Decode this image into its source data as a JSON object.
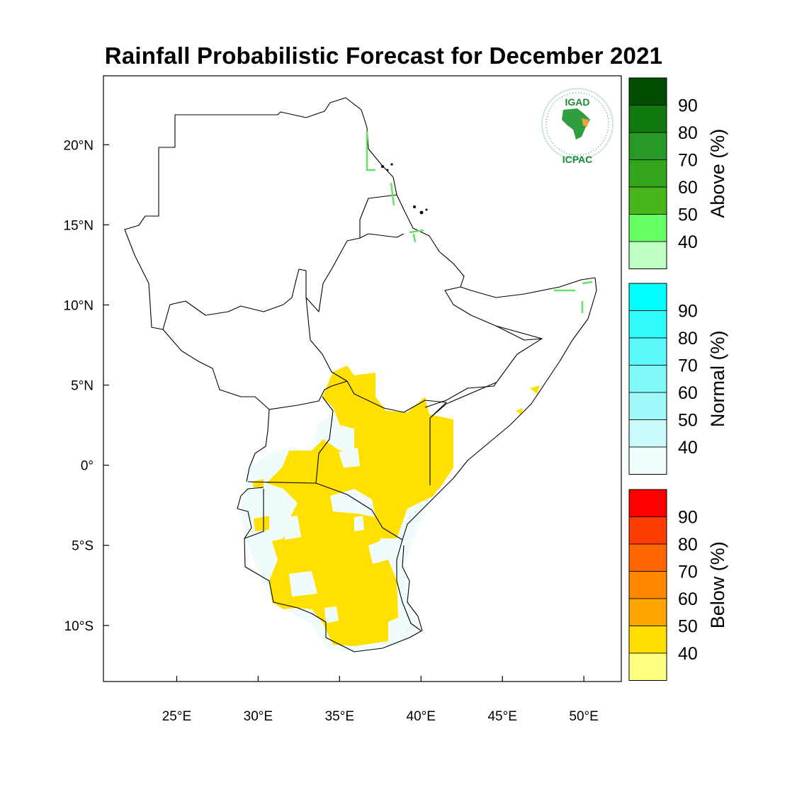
{
  "title": "Rainfall Probabilistic Forecast for December 2021",
  "map": {
    "lon_range": [
      20.5,
      52.3
    ],
    "lat_range": [
      -13.5,
      24.3
    ],
    "x_ticks": [
      {
        "value": 25,
        "label": "25°E"
      },
      {
        "value": 30,
        "label": "30°E"
      },
      {
        "value": 35,
        "label": "35°E"
      },
      {
        "value": 40,
        "label": "40°E"
      },
      {
        "value": 45,
        "label": "45°E"
      },
      {
        "value": 50,
        "label": "50°E"
      }
    ],
    "y_ticks": [
      {
        "value": 20,
        "label": "20°N"
      },
      {
        "value": 15,
        "label": "15°N"
      },
      {
        "value": 10,
        "label": "10°N"
      },
      {
        "value": 5,
        "label": "5°N"
      },
      {
        "value": 0,
        "label": "0°"
      },
      {
        "value": -5,
        "label": "5°S"
      },
      {
        "value": -10,
        "label": "10°S"
      }
    ],
    "forecast_zone_color": "#ffe000",
    "normal_zone_color": "#f0fbfb"
  },
  "colorbars": [
    {
      "name": "above",
      "title": "Above (%)",
      "labels": [
        "90",
        "80",
        "70",
        "60",
        "50",
        "40"
      ],
      "colors": [
        "#004d00",
        "#107a10",
        "#269926",
        "#33a51c",
        "#48b51a",
        "#66ff66",
        "#bfffbf"
      ]
    },
    {
      "name": "normal",
      "title": "Normal (%)",
      "labels": [
        "90",
        "80",
        "70",
        "60",
        "50",
        "40"
      ],
      "colors": [
        "#00ffff",
        "#30fbfb",
        "#5cf8fb",
        "#80f9f9",
        "#a0f9f9",
        "#ccfbfb",
        "#f0fefe"
      ]
    },
    {
      "name": "below",
      "title": "Below (%)",
      "labels": [
        "90",
        "80",
        "70",
        "60",
        "50",
        "40"
      ],
      "colors": [
        "#ff0000",
        "#ff3d00",
        "#ff6600",
        "#ff8800",
        "#ffa500",
        "#ffde00",
        "#ffff80"
      ]
    }
  ],
  "logo": {
    "top_text": "IGAD",
    "bottom_text": "ICPAC"
  }
}
